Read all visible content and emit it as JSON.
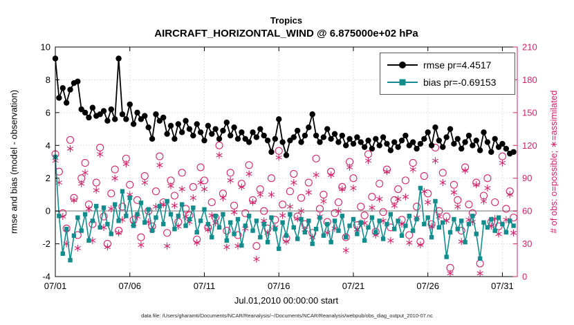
{
  "figure": {
    "title": "Tropics",
    "subtitle": "AIRCRAFT_HORIZONTAL_WIND @ 6.875000e+02 hPa",
    "xlabel": "Jul.01,2010 00:00:00 start",
    "ylabel_left": "rmse and bias (model - observation)",
    "ylabel_right": "# of obs: o=possible; ∗=assimilated",
    "footer": "data file: /Users/gharamti/Documents/NCAR/Reanalysis/~/Documents/NCAR/Reanalysis/webpub/obs_diag_output_2010-07.nc"
  },
  "legend": {
    "rmse_label": "rmse pr=4.4517",
    "bias_label": "bias pr=-0.69153"
  },
  "colors": {
    "rmse": "#000000",
    "bias": "#128c8c",
    "obs": "#d2246a",
    "grid": "#d9d9d9",
    "zero_line": "#b3b3b3"
  },
  "chart_data": {
    "type": "line",
    "x_start": 1,
    "x_step": 0.25,
    "x_axis": {
      "range": [
        1,
        32
      ],
      "ticks": [
        1,
        6,
        11,
        16,
        21,
        26,
        31
      ],
      "tick_labels": [
        "07/01",
        "07/06",
        "07/11",
        "07/16",
        "07/21",
        "07/26",
        "07/31"
      ]
    },
    "y_left": {
      "range": [
        -4,
        10
      ],
      "ticks": [
        -4,
        -2,
        0,
        2,
        4,
        6,
        8,
        10
      ]
    },
    "y_right": {
      "range": [
        0,
        210
      ],
      "ticks": [
        0,
        30,
        60,
        90,
        120,
        150,
        180,
        210
      ]
    },
    "grid": true,
    "legend_position": "top-right",
    "series": [
      {
        "name": "rmse",
        "axis": "left",
        "marker": "circle",
        "values": [
          9.3,
          6.9,
          7.5,
          6.6,
          7.4,
          7.8,
          7.9,
          6.2,
          6.0,
          5.7,
          6.3,
          5.8,
          5.9,
          6.1,
          5.5,
          6.2,
          5.6,
          9.3,
          5.9,
          5.6,
          6.5,
          5.3,
          6.0,
          5.6,
          5.8,
          5.1,
          4.4,
          5.9,
          5.5,
          5.7,
          4.7,
          5.2,
          4.4,
          5.3,
          4.8,
          5.5,
          5.0,
          4.6,
          5.3,
          4.8,
          4.3,
          5.2,
          4.7,
          5.0,
          4.4,
          4.9,
          5.4,
          4.6,
          5.1,
          4.4,
          4.8,
          4.4,
          4.2,
          4.8,
          4.5,
          5.0,
          4.6,
          4.3,
          3.6,
          4.4,
          5.6,
          4.2,
          3.4,
          4.3,
          4.5,
          4.9,
          4.2,
          4.6,
          5.1,
          5.9,
          4.6,
          4.2,
          4.5,
          5.0,
          4.4,
          4.7,
          4.2,
          4.6,
          4.0,
          4.4,
          4.1,
          4.5,
          4.2,
          3.9,
          4.3,
          3.8,
          4.4,
          4.0,
          4.5,
          4.1,
          3.7,
          4.2,
          3.9,
          4.3,
          4.6,
          4.0,
          4.2,
          3.8,
          4.1,
          4.4,
          4.8,
          4.0,
          5.1,
          4.3,
          3.9,
          4.5,
          5.0,
          4.1,
          4.4,
          3.8,
          4.2,
          4.6,
          4.0,
          4.3,
          3.7,
          4.8,
          4.2,
          3.6,
          4.4,
          3.9,
          4.1,
          3.8,
          3.5,
          3.6
        ]
      },
      {
        "name": "bias",
        "axis": "left",
        "marker": "square",
        "values": [
          3.3,
          -0.3,
          -2.6,
          -1.1,
          -3.0,
          -1.5,
          -0.4,
          -1.2,
          -0.2,
          -1.8,
          -0.6,
          0.3,
          -1.0,
          0.2,
          -0.8,
          -1.4,
          0.4,
          -0.6,
          1.2,
          -0.3,
          0.8,
          -0.9,
          -0.2,
          0.5,
          -0.7,
          0.1,
          -1.2,
          -0.4,
          0.3,
          -0.8,
          0.6,
          -0.2,
          -1.1,
          -0.3,
          0.4,
          -0.9,
          -0.5,
          0.2,
          -1.3,
          -0.6,
          0.1,
          -0.8,
          -1.6,
          -0.3,
          -1.0,
          -0.2,
          -1.8,
          -0.7,
          -1.4,
          -0.5,
          -2.1,
          -0.9,
          -0.3,
          -1.2,
          -0.6,
          -1.6,
          -0.8,
          -1.9,
          -0.4,
          -1.1,
          -2.3,
          -0.7,
          -1.5,
          -0.2,
          -1.0,
          -1.7,
          -0.5,
          -1.3,
          -0.6,
          -2.0,
          -1.1,
          -0.4,
          -1.5,
          -0.8,
          -1.9,
          -0.6,
          -1.2,
          -0.3,
          -1.6,
          -0.9,
          -0.5,
          -1.4,
          -0.7,
          -1.8,
          -1.0,
          -0.4,
          -1.3,
          -0.6,
          -1.7,
          -0.8,
          -0.2,
          -1.1,
          -0.6,
          -1.5,
          -0.9,
          -0.3,
          -1.2,
          -0.5,
          1.4,
          -0.8,
          -0.4,
          -1.6,
          0.6,
          -1.0,
          -0.7,
          -2.8,
          -1.3,
          -0.5,
          -1.1,
          -0.6,
          -1.9,
          -0.8,
          -0.3,
          -1.4,
          -2.9,
          -0.7,
          -1.0,
          -0.5,
          -1.2,
          -0.4,
          -0.8,
          -1.3,
          -0.6,
          -0.9
        ]
      },
      {
        "name": "possible",
        "axis": "right",
        "marker": "open-circle",
        "values": [
          112,
          96,
          58,
          44,
          125,
          72,
          38,
          90,
          104,
          66,
          48,
          86,
          118,
          55,
          30,
          76,
          98,
          42,
          64,
          108,
          84,
          52,
          70,
          36,
          92,
          60,
          46,
          78,
          110,
          68,
          40,
          88,
          74,
          50,
          95,
          62,
          56,
          82,
          34,
          100,
          88,
          45,
          68,
          54,
          120,
          76,
          42,
          95,
          65,
          38,
          85,
          58,
          102,
          70,
          28,
          80,
          60,
          44,
          90,
          52,
          115,
          66,
          35,
          78,
          94,
          55,
          72,
          48,
          86,
          40,
          108,
          62,
          75,
          50,
          96,
          58,
          68,
          82,
          36,
          105,
          90,
          47,
          64,
          56,
          112,
          73,
          41,
          85,
          59,
          98,
          45,
          70,
          80,
          52,
          88,
          38,
          104,
          64,
          32,
          92,
          76,
          48,
          118,
          60,
          95,
          55,
          8,
          84,
          70,
          42,
          100,
          66,
          58,
          86,
          12,
          74,
          90,
          50,
          68,
          46,
          110,
          62,
          78,
          54
        ]
      },
      {
        "name": "assimilated",
        "axis": "right",
        "marker": "asterisk",
        "values": [
          106,
          86,
          55,
          30,
          117,
          70,
          26,
          85,
          95,
          62,
          33,
          79,
          112,
          45,
          27,
          62,
          90,
          40,
          52,
          103,
          75,
          48,
          55,
          29,
          86,
          50,
          43,
          64,
          102,
          66,
          28,
          83,
          65,
          46,
          80,
          55,
          50,
          72,
          31,
          86,
          80,
          43,
          56,
          49,
          111,
          72,
          27,
          88,
          59,
          28,
          82,
          44,
          94,
          68,
          16,
          75,
          51,
          40,
          75,
          45,
          109,
          56,
          32,
          64,
          86,
          53,
          60,
          43,
          77,
          36,
          93,
          55,
          69,
          40,
          93,
          44,
          60,
          80,
          24,
          100,
          81,
          43,
          49,
          49,
          106,
          63,
          38,
          71,
          51,
          96,
          33,
          65,
          71,
          48,
          73,
          31,
          98,
          54,
          29,
          78,
          68,
          46,
          106,
          55,
          86,
          51,
          3,
          77,
          64,
          32,
          97,
          52,
          50,
          84,
          3,
          69,
          81,
          46,
          53,
          39,
          104,
          52,
          75,
          40
        ]
      }
    ]
  }
}
